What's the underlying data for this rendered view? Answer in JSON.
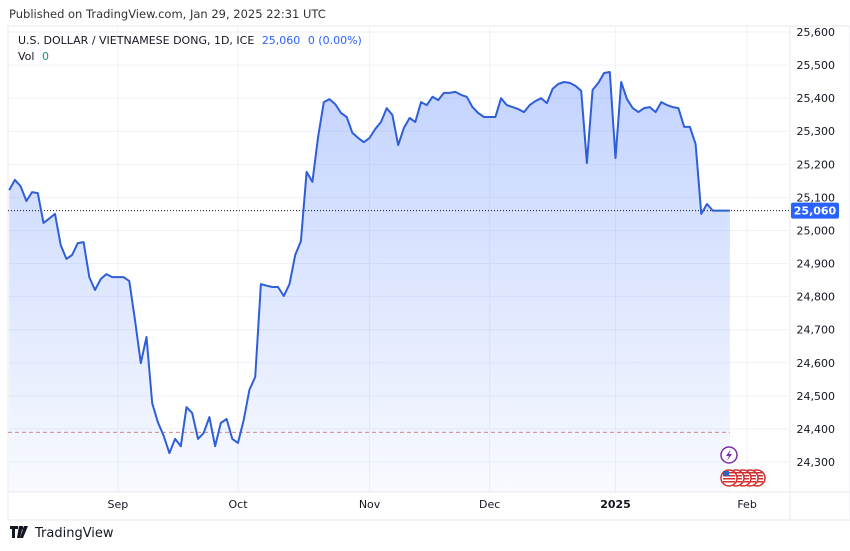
{
  "header": {
    "published": "Published on TradingView.com, Jan 29, 2025 22:31 UTC"
  },
  "legend": {
    "symbol": "U.S. DOLLAR / VIETNAMESE DONG, 1D, ICE",
    "last": "25,060",
    "change": "0 (0.00%)",
    "vol_label": "Vol",
    "vol_value": "0"
  },
  "footer": {
    "brand": "TradingView"
  },
  "icons": {
    "event_lightning": "lightning-icon",
    "event_flags": "us-flag-icon"
  },
  "colors": {
    "line": "#2f5fd8",
    "fill": "#2962ff",
    "price_label": "#2962ff",
    "ref_line": "#c06060"
  },
  "chart_data": {
    "type": "area",
    "title": "",
    "xlabel": "",
    "ylabel": "",
    "ylim": [
      24250,
      25620
    ],
    "y_ticks": [
      "24,300",
      "24,400",
      "24,500",
      "24,600",
      "24,700",
      "24,800",
      "24,900",
      "25,000",
      "25,100",
      "25,200",
      "25,300",
      "25,400",
      "25,500",
      "25,600"
    ],
    "y_tick_values": [
      24300,
      24400,
      24500,
      24600,
      24700,
      24800,
      24900,
      25000,
      25100,
      25200,
      25300,
      25400,
      25500,
      25600
    ],
    "x_ticks": [
      {
        "label": "Sep",
        "date": "2024-09-02",
        "bold": false
      },
      {
        "label": "Oct",
        "date": "2024-10-01",
        "bold": false
      },
      {
        "label": "Nov",
        "date": "2024-11-01",
        "bold": false
      },
      {
        "label": "Dec",
        "date": "2024-12-02",
        "bold": false
      },
      {
        "label": "2025",
        "date": "2025-01-01",
        "bold": true
      },
      {
        "label": "Feb",
        "date": "2025-02-03",
        "bold": false
      }
    ],
    "last_price": 25060,
    "last_price_label": "25,060",
    "reference_line": 24390,
    "grid": true,
    "points": [
      [
        "2024-08-06",
        25122
      ],
      [
        "2024-08-07",
        25153
      ],
      [
        "2024-08-08",
        25134
      ],
      [
        "2024-08-09",
        25089
      ],
      [
        "2024-08-12",
        25116
      ],
      [
        "2024-08-13",
        25113
      ],
      [
        "2024-08-14",
        25023
      ],
      [
        "2024-08-15",
        25036
      ],
      [
        "2024-08-16",
        25050
      ],
      [
        "2024-08-19",
        24956
      ],
      [
        "2024-08-20",
        24914
      ],
      [
        "2024-08-21",
        24926
      ],
      [
        "2024-08-22",
        24962
      ],
      [
        "2024-08-23",
        24965
      ],
      [
        "2024-08-26",
        24859
      ],
      [
        "2024-08-27",
        24820
      ],
      [
        "2024-08-28",
        24853
      ],
      [
        "2024-08-29",
        24868
      ],
      [
        "2024-08-30",
        24859
      ],
      [
        "2024-09-02",
        24859
      ],
      [
        "2024-09-03",
        24859
      ],
      [
        "2024-09-04",
        24847
      ],
      [
        "2024-09-05",
        24729
      ],
      [
        "2024-09-06",
        24599
      ],
      [
        "2024-09-09",
        24678
      ],
      [
        "2024-09-10",
        24478
      ],
      [
        "2024-09-11",
        24420
      ],
      [
        "2024-09-12",
        24380
      ],
      [
        "2024-09-13",
        24327
      ],
      [
        "2024-09-16",
        24370
      ],
      [
        "2024-09-17",
        24348
      ],
      [
        "2024-09-18",
        24466
      ],
      [
        "2024-09-19",
        24448
      ],
      [
        "2024-09-20",
        24370
      ],
      [
        "2024-09-23",
        24388
      ],
      [
        "2024-09-24",
        24436
      ],
      [
        "2024-09-25",
        24348
      ],
      [
        "2024-09-26",
        24418
      ],
      [
        "2024-09-27",
        24430
      ],
      [
        "2024-09-30",
        24370
      ],
      [
        "2024-10-01",
        24358
      ],
      [
        "2024-10-02",
        24427
      ],
      [
        "2024-10-03",
        24518
      ],
      [
        "2024-10-04",
        24557
      ],
      [
        "2024-10-07",
        24838
      ],
      [
        "2024-10-08",
        24833
      ],
      [
        "2024-10-09",
        24829
      ],
      [
        "2024-10-10",
        24829
      ],
      [
        "2024-10-11",
        24802
      ],
      [
        "2024-10-14",
        24838
      ],
      [
        "2024-10-15",
        24926
      ],
      [
        "2024-10-16",
        24968
      ],
      [
        "2024-10-17",
        25177
      ],
      [
        "2024-10-18",
        25147
      ],
      [
        "2024-10-21",
        25283
      ],
      [
        "2024-10-22",
        25388
      ],
      [
        "2024-10-23",
        25397
      ],
      [
        "2024-10-24",
        25382
      ],
      [
        "2024-10-25",
        25355
      ],
      [
        "2024-10-28",
        25343
      ],
      [
        "2024-10-29",
        25295
      ],
      [
        "2024-10-30",
        25280
      ],
      [
        "2024-10-31",
        25267
      ],
      [
        "2024-11-01",
        25280
      ],
      [
        "2024-11-04",
        25307
      ],
      [
        "2024-11-05",
        25328
      ],
      [
        "2024-11-06",
        25370
      ],
      [
        "2024-11-07",
        25349
      ],
      [
        "2024-11-08",
        25258
      ],
      [
        "2024-11-11",
        25310
      ],
      [
        "2024-11-12",
        25340
      ],
      [
        "2024-11-13",
        25328
      ],
      [
        "2024-11-14",
        25388
      ],
      [
        "2024-11-15",
        25379
      ],
      [
        "2024-11-18",
        25404
      ],
      [
        "2024-11-19",
        25394
      ],
      [
        "2024-11-20",
        25416
      ],
      [
        "2024-11-21",
        25416
      ],
      [
        "2024-11-22",
        25419
      ],
      [
        "2024-11-25",
        25410
      ],
      [
        "2024-11-26",
        25404
      ],
      [
        "2024-11-27",
        25373
      ],
      [
        "2024-11-28",
        25355
      ],
      [
        "2024-11-29",
        25343
      ],
      [
        "2024-12-02",
        25343
      ],
      [
        "2024-12-03",
        25343
      ],
      [
        "2024-12-04",
        25400
      ],
      [
        "2024-12-05",
        25379
      ],
      [
        "2024-12-06",
        25373
      ],
      [
        "2024-12-09",
        25367
      ],
      [
        "2024-12-10",
        25358
      ],
      [
        "2024-12-11",
        25379
      ],
      [
        "2024-12-12",
        25391
      ],
      [
        "2024-12-13",
        25400
      ],
      [
        "2024-12-16",
        25385
      ],
      [
        "2024-12-17",
        25428
      ],
      [
        "2024-12-18",
        25443
      ],
      [
        "2024-12-19",
        25449
      ],
      [
        "2024-12-20",
        25446
      ],
      [
        "2024-12-23",
        25437
      ],
      [
        "2024-12-24",
        25422
      ],
      [
        "2024-12-25",
        25204
      ],
      [
        "2024-12-26",
        25425
      ],
      [
        "2024-12-27",
        25446
      ],
      [
        "2024-12-30",
        25476
      ],
      [
        "2024-12-31",
        25479
      ],
      [
        "2025-01-01",
        25219
      ],
      [
        "2025-01-02",
        25449
      ],
      [
        "2025-01-03",
        25397
      ],
      [
        "2025-01-06",
        25370
      ],
      [
        "2025-01-07",
        25358
      ],
      [
        "2025-01-08",
        25370
      ],
      [
        "2025-01-09",
        25373
      ],
      [
        "2025-01-10",
        25358
      ],
      [
        "2025-01-13",
        25388
      ],
      [
        "2025-01-14",
        25379
      ],
      [
        "2025-01-15",
        25373
      ],
      [
        "2025-01-16",
        25370
      ],
      [
        "2025-01-17",
        25313
      ],
      [
        "2025-01-20",
        25313
      ],
      [
        "2025-01-21",
        25261
      ],
      [
        "2025-01-22",
        25050
      ],
      [
        "2025-01-23",
        25080
      ],
      [
        "2025-01-24",
        25060
      ],
      [
        "2025-01-27",
        25060
      ],
      [
        "2025-01-28",
        25060
      ],
      [
        "2025-01-29",
        25060
      ]
    ]
  }
}
